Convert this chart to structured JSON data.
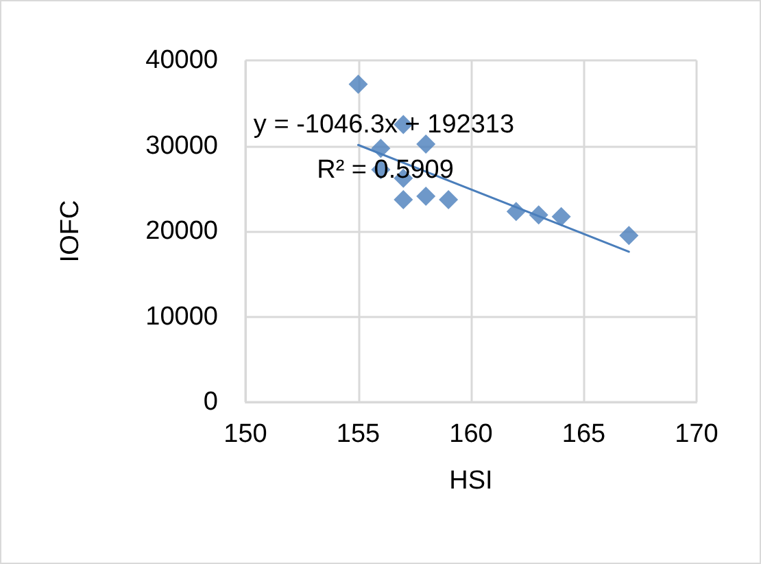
{
  "chart_data": {
    "type": "scatter",
    "xlabel": "HSI",
    "ylabel": "IOFC",
    "series": [
      {
        "type": "scatter",
        "color": "#4a7ebb",
        "marker": "diamond",
        "x": [
          155,
          157,
          156,
          158,
          156,
          157,
          157,
          158,
          159,
          162,
          163,
          164,
          167
        ],
        "values": [
          37200,
          32500,
          29700,
          30200,
          27200,
          26200,
          23700,
          24100,
          23700,
          22300,
          21900,
          21700,
          19500
        ]
      },
      {
        "type": "line",
        "color": "#4a7ebb",
        "marker": "none",
        "line_style": "solid",
        "x": [
          155,
          167
        ],
        "values": [
          30100,
          17600
        ]
      }
    ],
    "annotations": [
      "y = -1046.3x + 192313",
      "R² = 0.5909"
    ],
    "xlim": [
      150,
      170
    ],
    "xticks": [
      150,
      155,
      160,
      165,
      170
    ],
    "ylim": [
      0,
      40000
    ],
    "yticks": [
      0,
      10000,
      20000,
      30000,
      40000
    ],
    "grid": true
  }
}
